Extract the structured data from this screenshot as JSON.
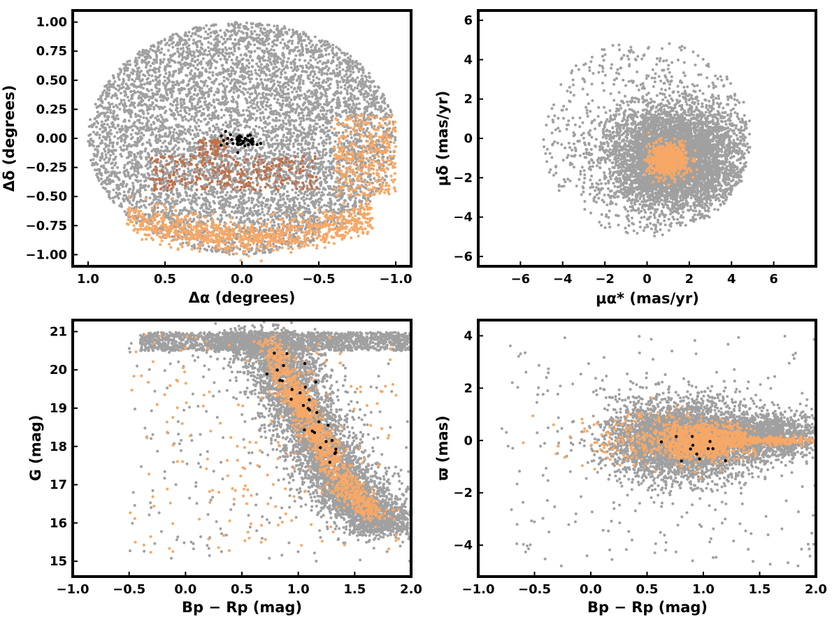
{
  "figure": {
    "colors": {
      "field": "#a0a0a0",
      "orange": "#f7a866",
      "light_orange": "#fdc088",
      "brown": "#c0714a",
      "black": "#000000"
    }
  },
  "chart_data": [
    {
      "id": "sky",
      "type": "scatter",
      "xlabel": "Δα (degrees)",
      "ylabel": "Δδ (degrees)",
      "xlim": [
        1.1,
        -1.1
      ],
      "ylim": [
        -1.1,
        1.1
      ],
      "x_ticks": [
        "1.0",
        "0.5",
        "0.0",
        "−0.5",
        "−1.0"
      ],
      "x_tick_values": [
        1.0,
        0.5,
        0.0,
        -0.5,
        -1.0
      ],
      "y_ticks": [
        "−1.00",
        "−0.75",
        "−0.50",
        "−0.25",
        "0.00",
        "0.25",
        "0.50",
        "0.75",
        "1.00"
      ],
      "y_tick_values": [
        -1.0,
        -0.75,
        -0.5,
        -0.25,
        0.0,
        0.25,
        0.5,
        0.75,
        1.0
      ],
      "grid": false,
      "series": [
        {
          "role": "field",
          "color": "#a0a0a0",
          "count": 6200,
          "distribution": "ellipse",
          "center": [
            0.0,
            0.0
          ],
          "radius": [
            1.0,
            1.0
          ]
        },
        {
          "role": "orange",
          "color": "#f7a866",
          "count": 900,
          "distribution": "arc",
          "center": [
            -0.05,
            -0.8
          ],
          "radius": [
            0.5,
            0.12
          ]
        },
        {
          "role": "orange",
          "color": "#f7a866",
          "count": 350,
          "distribution": "box",
          "x": [
            -1.0,
            -0.6
          ],
          "y": [
            -0.5,
            0.2
          ]
        },
        {
          "role": "brown",
          "color": "#c0714a",
          "count": 300,
          "distribution": "box",
          "x": [
            -0.5,
            0.6
          ],
          "y": [
            -0.45,
            -0.15
          ]
        },
        {
          "role": "brown",
          "color": "#c0714a",
          "count": 60,
          "distribution": "box",
          "x": [
            0.1,
            0.28
          ],
          "y": [
            -0.15,
            0.0
          ]
        },
        {
          "role": "black",
          "color": "#000000",
          "count": 45,
          "distribution": "gauss",
          "center": [
            0.0,
            -0.02
          ],
          "sigma": [
            0.07,
            0.03
          ]
        }
      ]
    },
    {
      "id": "proper-motion",
      "type": "scatter",
      "xlabel": "μα* (mas/yr)",
      "ylabel": "μδ (mas/yr)",
      "xlim": [
        -8,
        8
      ],
      "ylim": [
        -6.5,
        6.5
      ],
      "x_ticks": [
        "−6",
        "−4",
        "−2",
        "0",
        "2",
        "4",
        "6"
      ],
      "x_tick_values": [
        -6,
        -4,
        -2,
        0,
        2,
        4,
        6
      ],
      "y_ticks": [
        "−6",
        "−4",
        "−2",
        "0",
        "2",
        "4",
        "6"
      ],
      "y_tick_values": [
        -6,
        -4,
        -2,
        0,
        2,
        4,
        6
      ],
      "grid": false,
      "series": [
        {
          "role": "field",
          "color": "#a0a0a0",
          "count": 5200,
          "distribution": "gauss-clipped",
          "center": [
            1.3,
            -1.0
          ],
          "sigma": [
            1.6,
            1.3
          ],
          "clip_radius": 4.0
        },
        {
          "role": "field",
          "color": "#a0a0a0",
          "count": 700,
          "distribution": "ellipse",
          "center": [
            0.0,
            0.0
          ],
          "radius": [
            5.0,
            5.0
          ]
        },
        {
          "role": "orange",
          "color": "#f7a866",
          "count": 700,
          "distribution": "gauss",
          "center": [
            1.0,
            -1.1
          ],
          "sigma": [
            0.45,
            0.4
          ]
        }
      ]
    },
    {
      "id": "cmd",
      "type": "scatter",
      "xlabel": "Bp − Rp (mag)",
      "ylabel": "G (mag)",
      "xlim": [
        -1.0,
        2.0
      ],
      "ylim": [
        14.6,
        21.3
      ],
      "x_ticks": [
        "−1.0",
        "−0.5",
        "0.0",
        "0.5",
        "1.0",
        "1.5",
        "2.0"
      ],
      "x_tick_values": [
        -1.0,
        -0.5,
        0.0,
        0.5,
        1.0,
        1.5,
        2.0
      ],
      "y_ticks": [
        "15",
        "16",
        "17",
        "18",
        "19",
        "20",
        "21"
      ],
      "y_tick_values": [
        15,
        16,
        17,
        18,
        19,
        20,
        21
      ],
      "grid": false,
      "series": [
        {
          "role": "field",
          "color": "#a0a0a0",
          "count": 5000,
          "distribution": "sequence",
          "path": [
            [
              0.6,
              20.9
            ],
            [
              0.85,
              20.2
            ],
            [
              1.0,
              19.1
            ],
            [
              1.2,
              18.0
            ],
            [
              1.4,
              17.0
            ],
            [
              1.6,
              16.3
            ],
            [
              1.8,
              15.8
            ]
          ],
          "spread": [
            0.18,
            0.35
          ]
        },
        {
          "role": "field",
          "color": "#a0a0a0",
          "count": 1600,
          "distribution": "box",
          "x": [
            -0.4,
            2.0
          ],
          "y": [
            20.5,
            20.98
          ]
        },
        {
          "role": "field",
          "color": "#a0a0a0",
          "count": 250,
          "distribution": "box",
          "x": [
            -0.5,
            2.0
          ],
          "y": [
            15.0,
            20.9
          ]
        },
        {
          "role": "orange",
          "color": "#f7a866",
          "count": 1100,
          "distribution": "sequence",
          "path": [
            [
              0.75,
              20.8
            ],
            [
              0.95,
              19.5
            ],
            [
              1.05,
              18.9
            ],
            [
              1.25,
              17.8
            ],
            [
              1.45,
              16.8
            ],
            [
              1.7,
              16.2
            ]
          ],
          "spread": [
            0.07,
            0.2
          ]
        },
        {
          "role": "orange",
          "color": "#f7a866",
          "count": 180,
          "distribution": "box",
          "x": [
            -0.5,
            1.9
          ],
          "y": [
            15.2,
            21.0
          ]
        },
        {
          "role": "black",
          "color": "#000000",
          "count": 30,
          "distribution": "sequence",
          "path": [
            [
              0.8,
              20.6
            ],
            [
              1.0,
              19.5
            ],
            [
              1.2,
              18.5
            ],
            [
              1.35,
              17.4
            ]
          ],
          "spread": [
            0.08,
            0.3
          ]
        }
      ]
    },
    {
      "id": "parallax",
      "type": "scatter",
      "xlabel": "Bp − Rp (mag)",
      "ylabel": "ϖ (mas)",
      "xlim": [
        -1.0,
        2.0
      ],
      "ylim": [
        -5.2,
        4.6
      ],
      "x_ticks": [
        "−1.0",
        "−0.5",
        "0.0",
        "0.5",
        "1.0",
        "1.5",
        "2.0"
      ],
      "x_tick_values": [
        -1.0,
        -0.5,
        0.0,
        0.5,
        1.0,
        1.5,
        2.0
      ],
      "y_ticks": [
        "−4",
        "−2",
        "0",
        "2",
        "4"
      ],
      "y_tick_values": [
        -4,
        -2,
        0,
        2,
        4
      ],
      "grid": false,
      "series": [
        {
          "role": "field",
          "color": "#a0a0a0",
          "count": 3800,
          "distribution": "gauss",
          "center": [
            0.8,
            0.0
          ],
          "sigma": [
            0.32,
            0.75
          ]
        },
        {
          "role": "field",
          "color": "#a0a0a0",
          "count": 1400,
          "distribution": "gauss",
          "center": [
            1.55,
            0.2
          ],
          "sigma": [
            0.28,
            0.45
          ]
        },
        {
          "role": "field",
          "color": "#a0a0a0",
          "count": 250,
          "distribution": "box",
          "x": [
            -0.8,
            2.0
          ],
          "y": [
            -4.8,
            4.0
          ]
        },
        {
          "role": "orange",
          "color": "#f7a866",
          "count": 900,
          "distribution": "gauss",
          "center": [
            1.0,
            0.0
          ],
          "sigma": [
            0.2,
            0.35
          ]
        },
        {
          "role": "orange",
          "color": "#f7a866",
          "count": 250,
          "distribution": "gauss",
          "center": [
            1.55,
            0.0
          ],
          "sigma": [
            0.25,
            0.08
          ]
        },
        {
          "role": "orange",
          "color": "#f7a866",
          "count": 200,
          "distribution": "gauss",
          "center": [
            0.5,
            0.0
          ],
          "sigma": [
            0.35,
            0.6
          ]
        },
        {
          "role": "black",
          "color": "#000000",
          "count": 12,
          "distribution": "gauss",
          "center": [
            0.9,
            -0.3
          ],
          "sigma": [
            0.2,
            0.4
          ]
        }
      ]
    }
  ]
}
